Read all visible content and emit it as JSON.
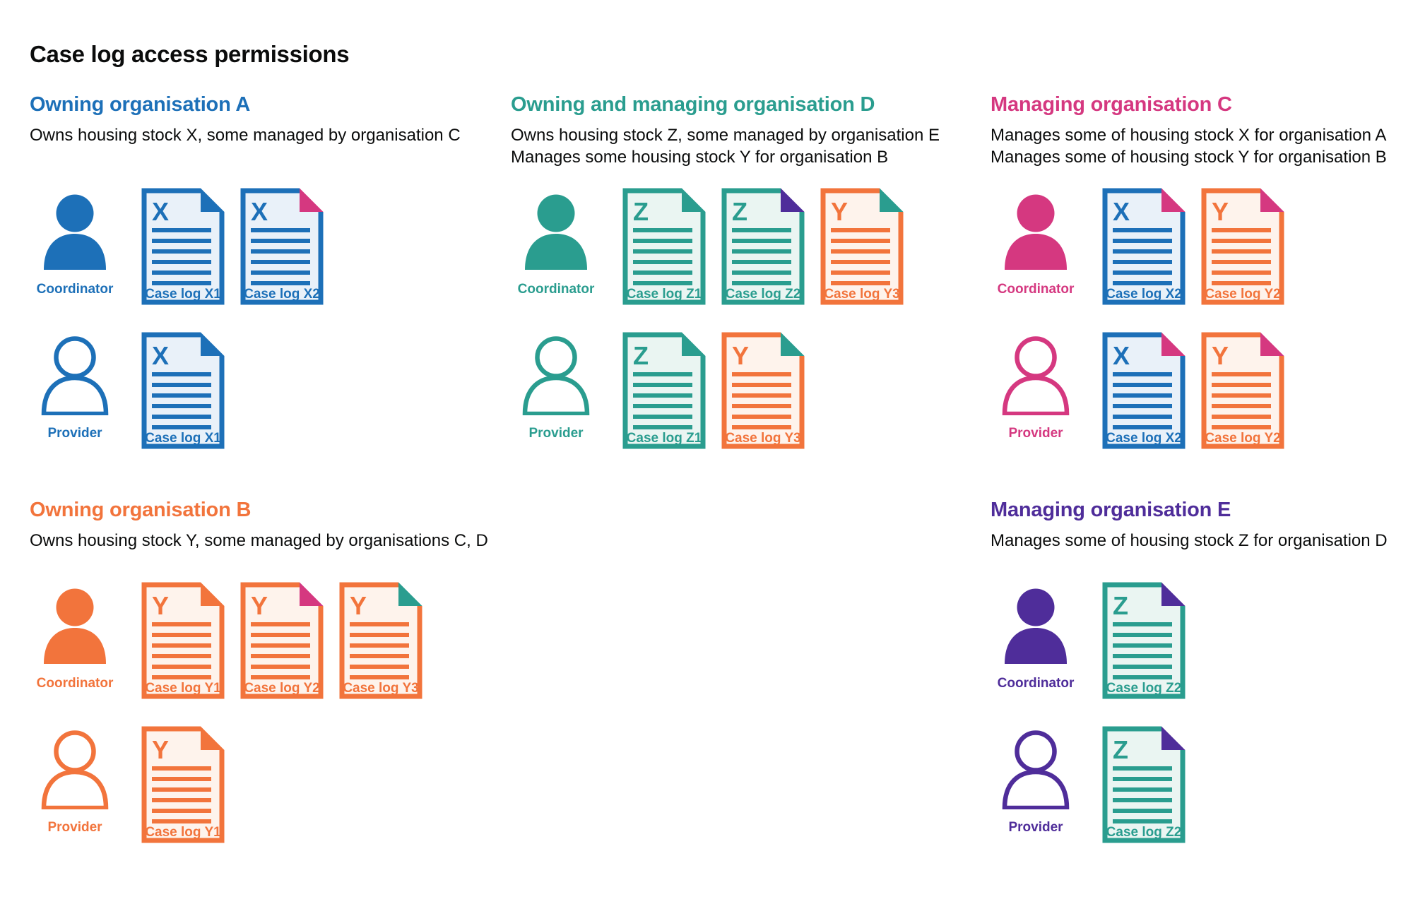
{
  "page": {
    "title": "Case log access permissions"
  },
  "colors": {
    "blue": "#1d70b8",
    "teal": "#2a9d8f",
    "pink": "#d53880",
    "orange": "#f2743c",
    "purple": "#4f2d9a",
    "text": "#0b0c0c"
  },
  "doc_fills": {
    "blue": "#e9f1f9",
    "teal": "#eaf5f2",
    "orange": "#fef3ec"
  },
  "sections": [
    {
      "id": "owning-organisation-a",
      "color_key": "blue",
      "position": "top-left",
      "heading": "Owning organisation A",
      "description_lines": [
        "Owns housing stock X, some managed by organisation C"
      ],
      "rows": [
        {
          "role_label": "Coordinator",
          "person_style": "filled",
          "docs": [
            {
              "letter": "X",
              "label": "Case log X1",
              "doc_color_key": "blue",
              "fold_color_key": "blue"
            },
            {
              "letter": "X",
              "label": "Case log X2",
              "doc_color_key": "blue",
              "fold_color_key": "pink"
            }
          ]
        },
        {
          "role_label": "Provider",
          "person_style": "outline",
          "docs": [
            {
              "letter": "X",
              "label": "Case log X1",
              "doc_color_key": "blue",
              "fold_color_key": "blue"
            }
          ]
        }
      ]
    },
    {
      "id": "owning-and-managing-organisation-d",
      "color_key": "teal",
      "position": "top-middle",
      "heading": "Owning and managing organisation D",
      "description_lines": [
        "Owns housing stock Z, some managed by organisation E",
        "Manages some housing stock Y for organisation B"
      ],
      "rows": [
        {
          "role_label": "Coordinator",
          "person_style": "filled",
          "docs": [
            {
              "letter": "Z",
              "label": "Case log Z1",
              "doc_color_key": "teal",
              "fold_color_key": "teal"
            },
            {
              "letter": "Z",
              "label": "Case log Z2",
              "doc_color_key": "teal",
              "fold_color_key": "purple"
            },
            {
              "letter": "Y",
              "label": "Case log Y3",
              "doc_color_key": "orange",
              "fold_color_key": "teal"
            }
          ]
        },
        {
          "role_label": "Provider",
          "person_style": "outline",
          "docs": [
            {
              "letter": "Z",
              "label": "Case log Z1",
              "doc_color_key": "teal",
              "fold_color_key": "teal"
            },
            {
              "letter": "Y",
              "label": "Case log Y3",
              "doc_color_key": "orange",
              "fold_color_key": "teal"
            }
          ]
        }
      ]
    },
    {
      "id": "managing-organisation-c",
      "color_key": "pink",
      "position": "top-right",
      "heading": "Managing organisation C",
      "description_lines": [
        "Manages some of housing stock X for organisation A",
        "Manages some of housing stock Y for organisation B"
      ],
      "rows": [
        {
          "role_label": "Coordinator",
          "person_style": "filled",
          "docs": [
            {
              "letter": "X",
              "label": "Case log X2",
              "doc_color_key": "blue",
              "fold_color_key": "pink"
            },
            {
              "letter": "Y",
              "label": "Case log Y2",
              "doc_color_key": "orange",
              "fold_color_key": "pink"
            }
          ]
        },
        {
          "role_label": "Provider",
          "person_style": "outline",
          "docs": [
            {
              "letter": "X",
              "label": "Case log X2",
              "doc_color_key": "blue",
              "fold_color_key": "pink"
            },
            {
              "letter": "Y",
              "label": "Case log Y2",
              "doc_color_key": "orange",
              "fold_color_key": "pink"
            }
          ]
        }
      ]
    },
    {
      "id": "owning-organisation-b",
      "color_key": "orange",
      "position": "bottom-left",
      "heading": "Owning organisation B",
      "description_lines": [
        "Owns housing stock Y, some managed by organisations C, D"
      ],
      "rows": [
        {
          "role_label": "Coordinator",
          "person_style": "filled",
          "docs": [
            {
              "letter": "Y",
              "label": "Case log Y1",
              "doc_color_key": "orange",
              "fold_color_key": "orange"
            },
            {
              "letter": "Y",
              "label": "Case log Y2",
              "doc_color_key": "orange",
              "fold_color_key": "pink"
            },
            {
              "letter": "Y",
              "label": "Case log Y3",
              "doc_color_key": "orange",
              "fold_color_key": "teal"
            }
          ]
        },
        {
          "role_label": "Provider",
          "person_style": "outline",
          "docs": [
            {
              "letter": "Y",
              "label": "Case log Y1",
              "doc_color_key": "orange",
              "fold_color_key": "orange"
            }
          ]
        }
      ]
    },
    {
      "id": "managing-organisation-e",
      "color_key": "purple",
      "position": "bottom-right",
      "heading": "Managing organisation E",
      "description_lines": [
        "Manages some of housing stock Z for organisation D"
      ],
      "rows": [
        {
          "role_label": "Coordinator",
          "person_style": "filled",
          "docs": [
            {
              "letter": "Z",
              "label": "Case log Z2",
              "doc_color_key": "teal",
              "fold_color_key": "purple"
            }
          ]
        },
        {
          "role_label": "Provider",
          "person_style": "outline",
          "docs": [
            {
              "letter": "Z",
              "label": "Case log Z2",
              "doc_color_key": "teal",
              "fold_color_key": "purple"
            }
          ]
        }
      ]
    }
  ]
}
